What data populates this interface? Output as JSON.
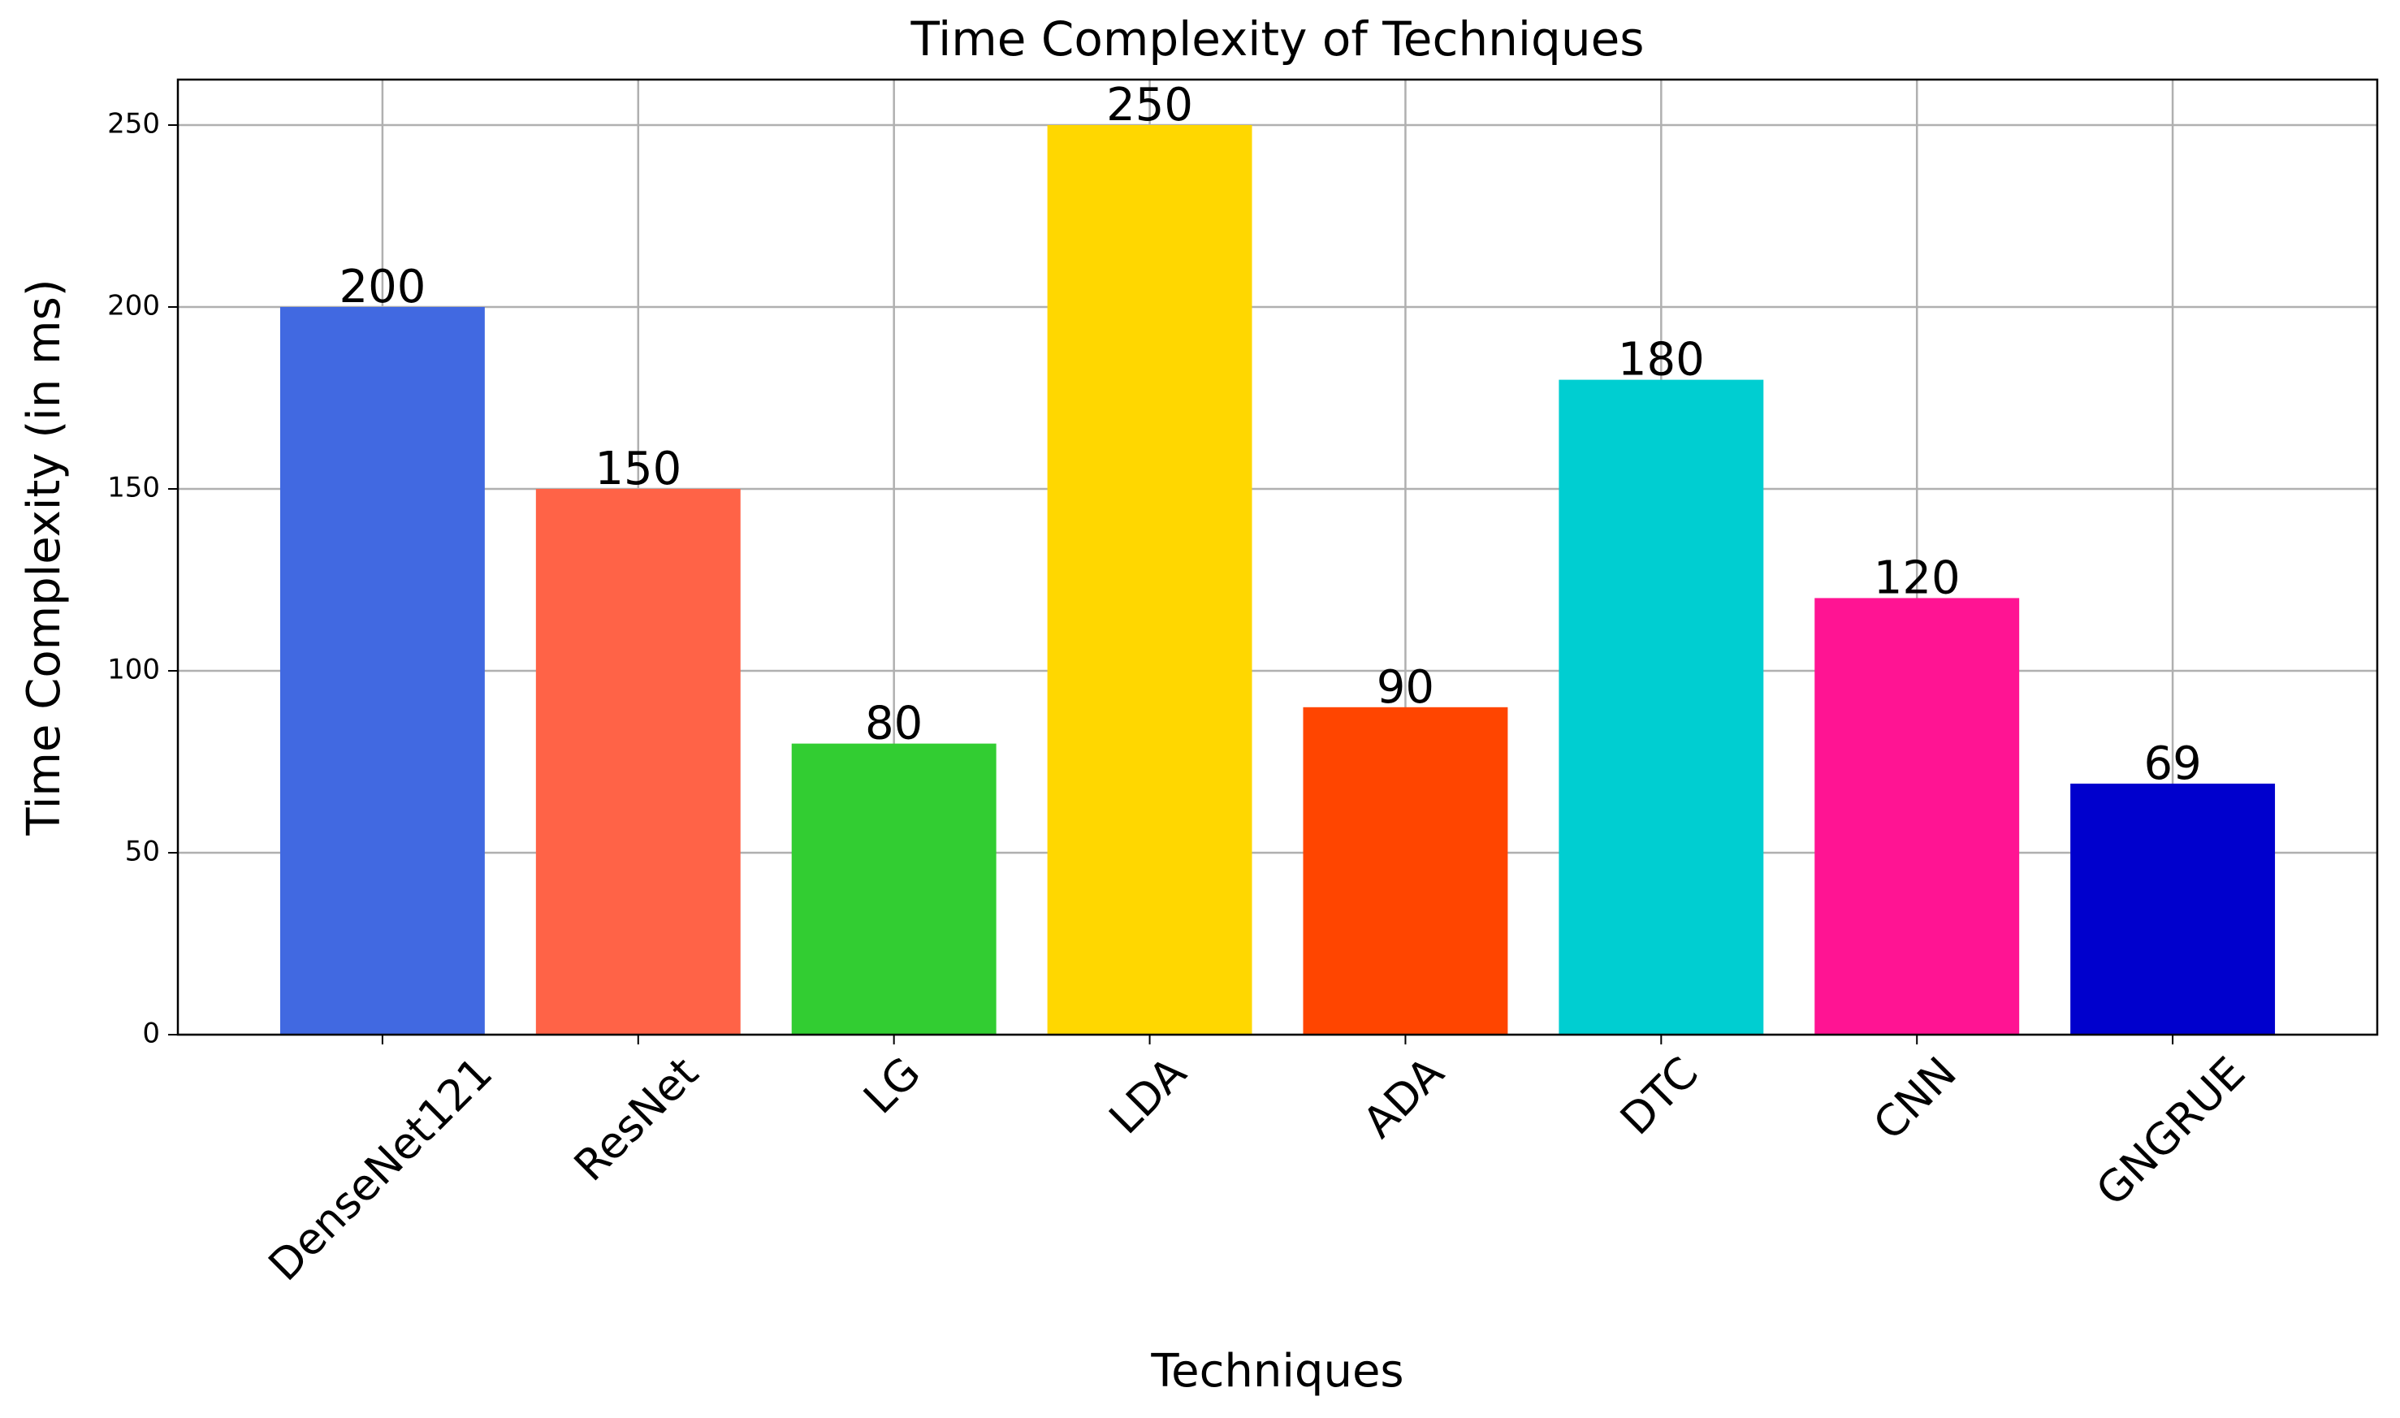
{
  "chart_data": {
    "type": "bar",
    "title": "Time Complexity of Techniques",
    "x_label": "Techniques",
    "y_label": "Time Complexity (in ms)",
    "categories": [
      "DenseNet121",
      "ResNet",
      "LG",
      "LDA",
      "ADA",
      "DTC",
      "CNN",
      "GNGRUE"
    ],
    "values": [
      200,
      150,
      80,
      250,
      90,
      180,
      120,
      69
    ],
    "colors": [
      "#4169e1",
      "#ff6347",
      "#32cd32",
      "#ffd700",
      "#ff4500",
      "#00ced1",
      "#ff1493",
      "#0000cd"
    ],
    "ylim": [
      0,
      262.5
    ],
    "yticks": [
      0,
      50,
      100,
      150,
      200,
      250
    ],
    "grid": true
  }
}
